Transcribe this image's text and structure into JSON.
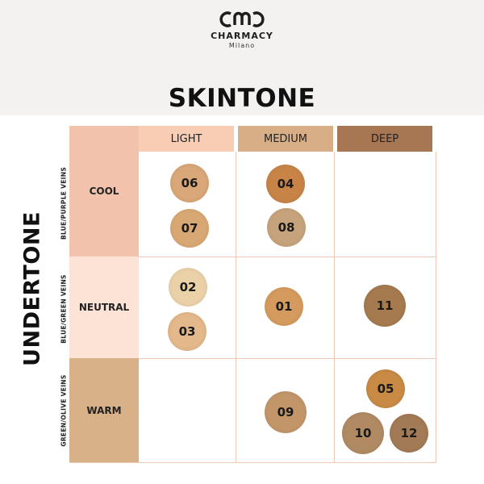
{
  "brand": {
    "name": "CHARMACY",
    "sub": "Milano"
  },
  "title": "SKINTONE",
  "side_title": "UNDERTONE",
  "columns": [
    {
      "label": "LIGHT",
      "color": "#f9cdb4"
    },
    {
      "label": "MEDIUM",
      "color": "#d8ae87"
    },
    {
      "label": "DEEP",
      "color": "#a77653"
    }
  ],
  "rows": [
    {
      "label": "COOL",
      "vein": "BLUE/PURPLE VEINS",
      "color": "#f3c2ac"
    },
    {
      "label": "NEUTRAL",
      "vein": "BLUE/GREEN VEINS",
      "color": "#fde3d6"
    },
    {
      "label": "WARM",
      "vein": "GREEN/OLIVE VEINS",
      "color": "#d8b189"
    }
  ],
  "swatches": [
    {
      "code": "06",
      "color": "#d9a778"
    },
    {
      "code": "07",
      "color": "#d8a874"
    },
    {
      "code": "04",
      "color": "#c88447"
    },
    {
      "code": "08",
      "color": "#c6a37c"
    },
    {
      "code": "02",
      "color": "#ead1a8"
    },
    {
      "code": "03",
      "color": "#e3b88a"
    },
    {
      "code": "01",
      "color": "#d59a5d"
    },
    {
      "code": "11",
      "color": "#a57a4e"
    },
    {
      "code": "09",
      "color": "#c29669"
    },
    {
      "code": "05",
      "color": "#c88a45"
    },
    {
      "code": "10",
      "color": "#b08a63"
    },
    {
      "code": "12",
      "color": "#a27a56"
    }
  ]
}
